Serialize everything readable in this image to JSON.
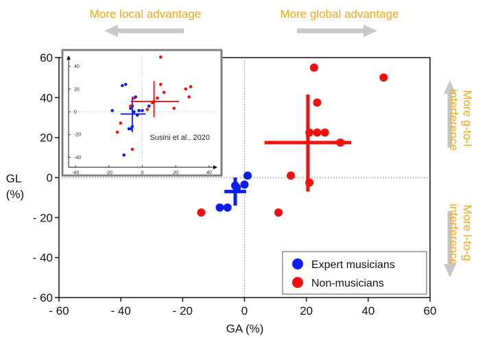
{
  "annotations": {
    "left": "More local advantage",
    "right": "More global advantage",
    "top_side": "More g-to-l interference",
    "bottom_side": "More l-to-g interference"
  },
  "colors": {
    "expert": "#0a1ef0",
    "non": "#f01010",
    "annotation": "#f0a818",
    "arrow": "#c8c8c8",
    "inset_border": "#808080"
  },
  "chart_data": {
    "type": "scatter",
    "xlabel": "GA (%)",
    "ylabel": "GL (%)",
    "xlim": [
      -60,
      60
    ],
    "ylim": [
      -60,
      60
    ],
    "xticks": [
      "- 60",
      "- 40",
      "- 20",
      "0",
      "20",
      "40",
      "60"
    ],
    "yticks": [
      "60",
      "40",
      "20",
      "0",
      "- 20",
      "- 40",
      "- 60"
    ],
    "reference_lines": {
      "x": 0,
      "y": 0,
      "style": "dotted"
    },
    "legend": {
      "position": "bottom-right",
      "entries": [
        "Expert musicians",
        "Non-musicians"
      ]
    },
    "series": [
      {
        "name": "Expert musicians",
        "color": "#0a1ef0",
        "points": [
          [
            1,
            1
          ],
          [
            0,
            -3.5
          ],
          [
            -3,
            -4
          ],
          [
            -2.5,
            -5
          ],
          [
            -5.5,
            -15
          ],
          [
            -8,
            -15
          ]
        ],
        "mean": [
          -3,
          -7
        ],
        "error_x": [
          -6.5,
          0.5
        ],
        "error_y": [
          -14,
          0
        ]
      },
      {
        "name": "Non-musicians",
        "color": "#f01010",
        "points": [
          [
            22.5,
            55
          ],
          [
            45,
            50
          ],
          [
            23.5,
            37.5
          ],
          [
            21,
            22.5
          ],
          [
            23.5,
            22.5
          ],
          [
            26,
            22.5
          ],
          [
            31,
            17.5
          ],
          [
            15,
            1
          ],
          [
            21,
            -2.5
          ],
          [
            -14,
            -17.5
          ],
          [
            11,
            -17.5
          ]
        ],
        "mean": [
          20.5,
          17.5
        ],
        "error_x": [
          6.5,
          34.5
        ],
        "error_y": [
          -7,
          41.5
        ]
      }
    ],
    "inset": {
      "citation": "Susini et al., 2020",
      "xticks": [
        "-40",
        "-20",
        "0",
        "20",
        "40"
      ],
      "yticks": [
        "40",
        "20",
        "0",
        "-20",
        "-40"
      ],
      "xlim": [
        -45,
        45
      ],
      "ylim": [
        -50,
        50
      ],
      "series": [
        {
          "name": "Expert musicians",
          "color": "#0a1ef0",
          "points": [
            [
              -12,
              23
            ],
            [
              -10,
              24
            ],
            [
              -4,
              13
            ],
            [
              -6,
              5
            ],
            [
              -7,
              3
            ],
            [
              -5,
              0
            ],
            [
              -3,
              -3
            ],
            [
              -2,
              1
            ],
            [
              0,
              1
            ],
            [
              -6,
              -13
            ],
            [
              -8,
              -15
            ],
            [
              -7,
              -15
            ],
            [
              -18,
              1
            ],
            [
              -11,
              -38
            ],
            [
              4,
              5
            ]
          ],
          "mean": [
            -6,
            -2
          ],
          "error_x": [
            -13,
            2
          ],
          "error_y": [
            -18,
            13
          ]
        },
        {
          "name": "Non-musicians",
          "color": "#f01010",
          "points": [
            [
              11,
              48
            ],
            [
              11,
              24
            ],
            [
              13,
              17
            ],
            [
              9,
              12
            ],
            [
              7,
              9
            ],
            [
              6,
              8
            ],
            [
              26,
              20
            ],
            [
              29,
              22
            ],
            [
              28,
              13
            ],
            [
              -5,
              12
            ],
            [
              -7,
              5
            ],
            [
              -13,
              -10
            ],
            [
              -15,
              -18
            ],
            [
              19,
              3
            ],
            [
              3,
              2
            ],
            [
              -6,
              -33
            ]
          ],
          "mean": [
            7,
            9
          ],
          "error_x": [
            -7,
            22
          ],
          "error_y": [
            -5,
            27
          ]
        }
      ]
    }
  }
}
